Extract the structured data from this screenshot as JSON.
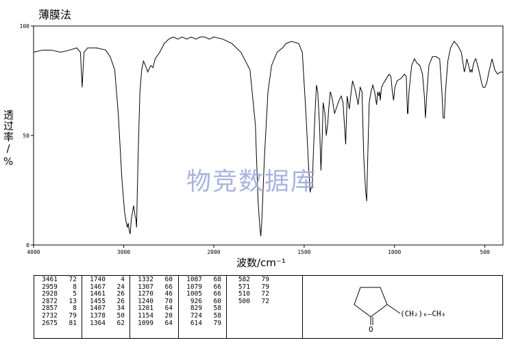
{
  "header": {
    "title": "薄膜法"
  },
  "axes": {
    "ylabel": "透过率/%",
    "xlabel": "波数/cm⁻¹"
  },
  "watermark": "物竞数据库",
  "chart_data": {
    "type": "line",
    "title": "",
    "xlabel": "波数/cm⁻¹",
    "ylabel": "透过率/%",
    "xlim": [
      4000,
      400
    ],
    "ylim": [
      0,
      100
    ],
    "xticks": [
      4000,
      3000,
      2000,
      1500,
      1000,
      500
    ],
    "yticks": [
      0,
      50,
      100
    ],
    "x_axis_reversed": true,
    "x_scale_change_at": 2000,
    "grid": false,
    "series": [
      {
        "color": "#000000",
        "points": [
          [
            4000,
            88
          ],
          [
            3900,
            89
          ],
          [
            3800,
            89
          ],
          [
            3700,
            88
          ],
          [
            3600,
            89
          ],
          [
            3520,
            90
          ],
          [
            3480,
            88
          ],
          [
            3461,
            72
          ],
          [
            3440,
            88
          ],
          [
            3400,
            90
          ],
          [
            3300,
            90
          ],
          [
            3200,
            89
          ],
          [
            3150,
            86
          ],
          [
            3100,
            80
          ],
          [
            3060,
            60
          ],
          [
            3020,
            30
          ],
          [
            2990,
            15
          ],
          [
            2970,
            10
          ],
          [
            2959,
            8
          ],
          [
            2950,
            10
          ],
          [
            2940,
            7
          ],
          [
            2928,
            5
          ],
          [
            2915,
            12
          ],
          [
            2890,
            18
          ],
          [
            2872,
            13
          ],
          [
            2865,
            12
          ],
          [
            2857,
            8
          ],
          [
            2840,
            40
          ],
          [
            2820,
            70
          ],
          [
            2800,
            80
          ],
          [
            2780,
            84
          ],
          [
            2760,
            82
          ],
          [
            2732,
            79
          ],
          [
            2700,
            82
          ],
          [
            2675,
            81
          ],
          [
            2650,
            85
          ],
          [
            2600,
            88
          ],
          [
            2550,
            92
          ],
          [
            2500,
            94
          ],
          [
            2450,
            95
          ],
          [
            2400,
            94
          ],
          [
            2350,
            95
          ],
          [
            2300,
            94
          ],
          [
            2250,
            95
          ],
          [
            2200,
            94
          ],
          [
            2150,
            95
          ],
          [
            2100,
            95
          ],
          [
            2050,
            94
          ],
          [
            2000,
            95
          ],
          [
            1950,
            94
          ],
          [
            1900,
            92
          ],
          [
            1850,
            88
          ],
          [
            1800,
            80
          ],
          [
            1770,
            55
          ],
          [
            1755,
            20
          ],
          [
            1745,
            8
          ],
          [
            1740,
            4
          ],
          [
            1735,
            10
          ],
          [
            1720,
            40
          ],
          [
            1700,
            70
          ],
          [
            1680,
            82
          ],
          [
            1650,
            88
          ],
          [
            1620,
            90
          ],
          [
            1600,
            92
          ],
          [
            1570,
            93
          ],
          [
            1530,
            92
          ],
          [
            1510,
            88
          ],
          [
            1490,
            60
          ],
          [
            1475,
            35
          ],
          [
            1467,
            24
          ],
          [
            1463,
            26
          ],
          [
            1461,
            26
          ],
          [
            1455,
            26
          ],
          [
            1450,
            40
          ],
          [
            1440,
            60
          ],
          [
            1432,
            73
          ],
          [
            1425,
            70
          ],
          [
            1415,
            55
          ],
          [
            1407,
            34
          ],
          [
            1400,
            50
          ],
          [
            1395,
            65
          ],
          [
            1385,
            60
          ],
          [
            1378,
            50
          ],
          [
            1370,
            55
          ],
          [
            1364,
            62
          ],
          [
            1355,
            70
          ],
          [
            1345,
            67
          ],
          [
            1332,
            60
          ],
          [
            1320,
            63
          ],
          [
            1307,
            66
          ],
          [
            1295,
            68
          ],
          [
            1285,
            65
          ],
          [
            1270,
            46
          ],
          [
            1262,
            68
          ],
          [
            1250,
            62
          ],
          [
            1240,
            70
          ],
          [
            1232,
            75
          ],
          [
            1225,
            73
          ],
          [
            1215,
            70
          ],
          [
            1201,
            64
          ],
          [
            1190,
            72
          ],
          [
            1180,
            70
          ],
          [
            1170,
            40
          ],
          [
            1160,
            25
          ],
          [
            1154,
            20
          ],
          [
            1148,
            40
          ],
          [
            1140,
            65
          ],
          [
            1130,
            70
          ],
          [
            1120,
            73
          ],
          [
            1110,
            70
          ],
          [
            1099,
            64
          ],
          [
            1093,
            70
          ],
          [
            1087,
            68
          ],
          [
            1082,
            70
          ],
          [
            1079,
            66
          ],
          [
            1072,
            72
          ],
          [
            1060,
            74
          ],
          [
            1045,
            76
          ],
          [
            1030,
            78
          ],
          [
            1020,
            77
          ],
          [
            1012,
            70
          ],
          [
            1005,
            66
          ],
          [
            998,
            72
          ],
          [
            985,
            75
          ],
          [
            965,
            76
          ],
          [
            945,
            78
          ],
          [
            935,
            77
          ],
          [
            928,
            60
          ],
          [
            926,
            60
          ],
          [
            920,
            70
          ],
          [
            905,
            82
          ],
          [
            890,
            85
          ],
          [
            875,
            83
          ],
          [
            860,
            82
          ],
          [
            845,
            78
          ],
          [
            835,
            68
          ],
          [
            829,
            58
          ],
          [
            822,
            68
          ],
          [
            810,
            82
          ],
          [
            790,
            86
          ],
          [
            770,
            86
          ],
          [
            750,
            85
          ],
          [
            738,
            70
          ],
          [
            731,
            58
          ],
          [
            724,
            58
          ],
          [
            718,
            70
          ],
          [
            705,
            84
          ],
          [
            690,
            90
          ],
          [
            670,
            93
          ],
          [
            650,
            91
          ],
          [
            630,
            88
          ],
          [
            614,
            79
          ],
          [
            605,
            82
          ],
          [
            600,
            85
          ],
          [
            590,
            82
          ],
          [
            582,
            79
          ],
          [
            576,
            80
          ],
          [
            571,
            79
          ],
          [
            565,
            82
          ],
          [
            558,
            84
          ],
          [
            550,
            85
          ],
          [
            540,
            82
          ],
          [
            528,
            78
          ],
          [
            518,
            74
          ],
          [
            510,
            72
          ],
          [
            505,
            72
          ],
          [
            500,
            72
          ],
          [
            490,
            74
          ],
          [
            475,
            80
          ],
          [
            460,
            85
          ],
          [
            445,
            80
          ],
          [
            430,
            78
          ],
          [
            415,
            79
          ],
          [
            400,
            79
          ]
        ]
      }
    ],
    "peak_table": [
      [
        [
          3461,
          72
        ],
        [
          2959,
          8
        ],
        [
          2928,
          5
        ],
        [
          2872,
          13
        ],
        [
          2857,
          8
        ],
        [
          2732,
          79
        ],
        [
          2675,
          81
        ]
      ],
      [
        [
          1740,
          4
        ],
        [
          1467,
          24
        ],
        [
          1461,
          26
        ],
        [
          1455,
          26
        ],
        [
          1407,
          34
        ],
        [
          1378,
          50
        ],
        [
          1364,
          62
        ]
      ],
      [
        [
          1332,
          60
        ],
        [
          1307,
          66
        ],
        [
          1270,
          46
        ],
        [
          1240,
          70
        ],
        [
          1201,
          64
        ],
        [
          1154,
          20
        ],
        [
          1099,
          64
        ]
      ],
      [
        [
          1087,
          68
        ],
        [
          1079,
          66
        ],
        [
          1005,
          66
        ],
        [
          926,
          60
        ],
        [
          829,
          58
        ],
        [
          724,
          58
        ],
        [
          614,
          79
        ]
      ],
      [
        [
          582,
          79
        ],
        [
          571,
          79
        ],
        [
          510,
          72
        ],
        [
          500,
          72
        ]
      ]
    ]
  },
  "structure": {
    "substituent_chain": "(CH₂)₆—CH₃",
    "oxygen_label": "O"
  }
}
